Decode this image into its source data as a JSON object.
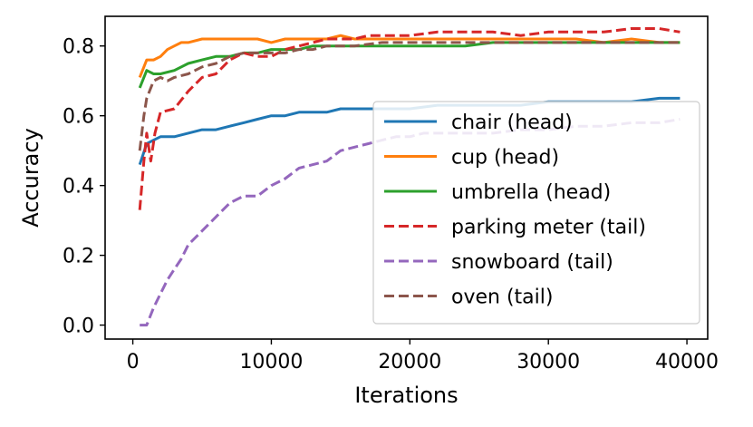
{
  "chart_data": {
    "type": "line",
    "xlabel": "Iterations",
    "ylabel": "Accuracy",
    "xlim": [
      -2000,
      41500
    ],
    "ylim": [
      -0.04,
      0.885
    ],
    "xticks": [
      0,
      10000,
      20000,
      30000,
      40000
    ],
    "xtick_labels": [
      "0",
      "10000",
      "20000",
      "30000",
      "40000"
    ],
    "yticks": [
      0.0,
      0.2,
      0.4,
      0.6,
      0.8
    ],
    "ytick_labels": [
      "0.0",
      "0.2",
      "0.4",
      "0.6",
      "0.8"
    ],
    "grid": false,
    "legend_position": "lower-right",
    "series": [
      {
        "name": "chair (head)",
        "color": "#1f77b4",
        "dash": "solid",
        "x": [
          500,
          1000,
          1500,
          2000,
          3000,
          4000,
          5000,
          6000,
          7000,
          8000,
          9000,
          10000,
          11000,
          12000,
          13000,
          14000,
          15000,
          16000,
          17000,
          18000,
          19000,
          20000,
          22000,
          24000,
          26000,
          28000,
          30000,
          32000,
          34000,
          36000,
          38000,
          39500
        ],
        "y": [
          0.46,
          0.52,
          0.53,
          0.54,
          0.54,
          0.55,
          0.56,
          0.56,
          0.57,
          0.58,
          0.59,
          0.6,
          0.6,
          0.61,
          0.61,
          0.61,
          0.62,
          0.62,
          0.62,
          0.62,
          0.62,
          0.62,
          0.63,
          0.63,
          0.63,
          0.63,
          0.64,
          0.64,
          0.64,
          0.64,
          0.65,
          0.65
        ]
      },
      {
        "name": "cup (head)",
        "color": "#ff7f0e",
        "dash": "solid",
        "x": [
          500,
          1000,
          1500,
          2000,
          2500,
          3000,
          3500,
          4000,
          5000,
          6000,
          7000,
          8000,
          9000,
          10000,
          11000,
          12000,
          13000,
          14000,
          15000,
          16000,
          18000,
          20000,
          22000,
          24000,
          26000,
          28000,
          30000,
          32000,
          34000,
          36000,
          38000,
          39500
        ],
        "y": [
          0.71,
          0.76,
          0.76,
          0.77,
          0.79,
          0.8,
          0.81,
          0.81,
          0.82,
          0.82,
          0.82,
          0.82,
          0.82,
          0.81,
          0.82,
          0.82,
          0.82,
          0.82,
          0.83,
          0.82,
          0.82,
          0.82,
          0.82,
          0.82,
          0.82,
          0.82,
          0.82,
          0.82,
          0.81,
          0.82,
          0.81,
          0.81
        ]
      },
      {
        "name": "umbrella (head)",
        "color": "#2ca02c",
        "dash": "solid",
        "x": [
          500,
          1000,
          1500,
          2000,
          3000,
          4000,
          5000,
          6000,
          7000,
          8000,
          9000,
          10000,
          11000,
          12000,
          13000,
          14000,
          15000,
          16000,
          18000,
          20000,
          22000,
          24000,
          26000,
          28000,
          30000,
          32000,
          34000,
          36000,
          38000,
          39500
        ],
        "y": [
          0.68,
          0.73,
          0.72,
          0.72,
          0.73,
          0.75,
          0.76,
          0.77,
          0.77,
          0.78,
          0.78,
          0.79,
          0.79,
          0.79,
          0.8,
          0.8,
          0.8,
          0.8,
          0.8,
          0.8,
          0.8,
          0.8,
          0.81,
          0.81,
          0.81,
          0.81,
          0.81,
          0.81,
          0.81,
          0.81
        ]
      },
      {
        "name": "parking meter (tail)",
        "color": "#d62728",
        "dash": "dashed",
        "x": [
          500,
          800,
          1000,
          1300,
          1600,
          2000,
          3000,
          4000,
          5000,
          6000,
          7000,
          8000,
          9000,
          10000,
          11000,
          12000,
          13000,
          14000,
          15000,
          16000,
          17000,
          18000,
          19000,
          20000,
          22000,
          24000,
          26000,
          28000,
          30000,
          32000,
          34000,
          36000,
          38000,
          39500
        ],
        "y": [
          0.33,
          0.47,
          0.55,
          0.47,
          0.55,
          0.61,
          0.62,
          0.67,
          0.71,
          0.72,
          0.76,
          0.78,
          0.77,
          0.77,
          0.79,
          0.8,
          0.81,
          0.82,
          0.82,
          0.82,
          0.83,
          0.83,
          0.83,
          0.83,
          0.84,
          0.84,
          0.84,
          0.83,
          0.84,
          0.84,
          0.84,
          0.85,
          0.85,
          0.84
        ]
      },
      {
        "name": "snowboard (tail)",
        "color": "#9467bd",
        "dash": "dashed",
        "x": [
          500,
          1000,
          1500,
          2000,
          2500,
          3000,
          3500,
          4000,
          5000,
          6000,
          7000,
          8000,
          9000,
          10000,
          11000,
          12000,
          13000,
          14000,
          15000,
          16000,
          17000,
          18000,
          19000,
          20000,
          21000,
          22000,
          24000,
          26000,
          28000,
          30000,
          32000,
          34000,
          36000,
          38000,
          39500
        ],
        "y": [
          0.0,
          0.0,
          0.05,
          0.09,
          0.13,
          0.16,
          0.19,
          0.23,
          0.27,
          0.31,
          0.35,
          0.37,
          0.37,
          0.4,
          0.42,
          0.45,
          0.46,
          0.47,
          0.5,
          0.51,
          0.52,
          0.53,
          0.54,
          0.54,
          0.55,
          0.55,
          0.55,
          0.55,
          0.56,
          0.56,
          0.57,
          0.57,
          0.58,
          0.58,
          0.59
        ]
      },
      {
        "name": "oven (tail)",
        "color": "#8c564b",
        "dash": "dashed",
        "x": [
          500,
          800,
          1000,
          1500,
          2000,
          2500,
          3000,
          4000,
          5000,
          6000,
          7000,
          8000,
          9000,
          10000,
          11000,
          12000,
          13000,
          14000,
          15000,
          16000,
          18000,
          20000,
          22000,
          24000,
          26000,
          28000,
          30000,
          32000,
          34000,
          36000,
          38000,
          39500
        ],
        "y": [
          0.5,
          0.6,
          0.65,
          0.7,
          0.71,
          0.7,
          0.71,
          0.72,
          0.74,
          0.75,
          0.77,
          0.78,
          0.78,
          0.78,
          0.78,
          0.79,
          0.79,
          0.8,
          0.8,
          0.8,
          0.81,
          0.81,
          0.81,
          0.81,
          0.81,
          0.81,
          0.81,
          0.81,
          0.81,
          0.81,
          0.81,
          0.81
        ]
      }
    ]
  }
}
